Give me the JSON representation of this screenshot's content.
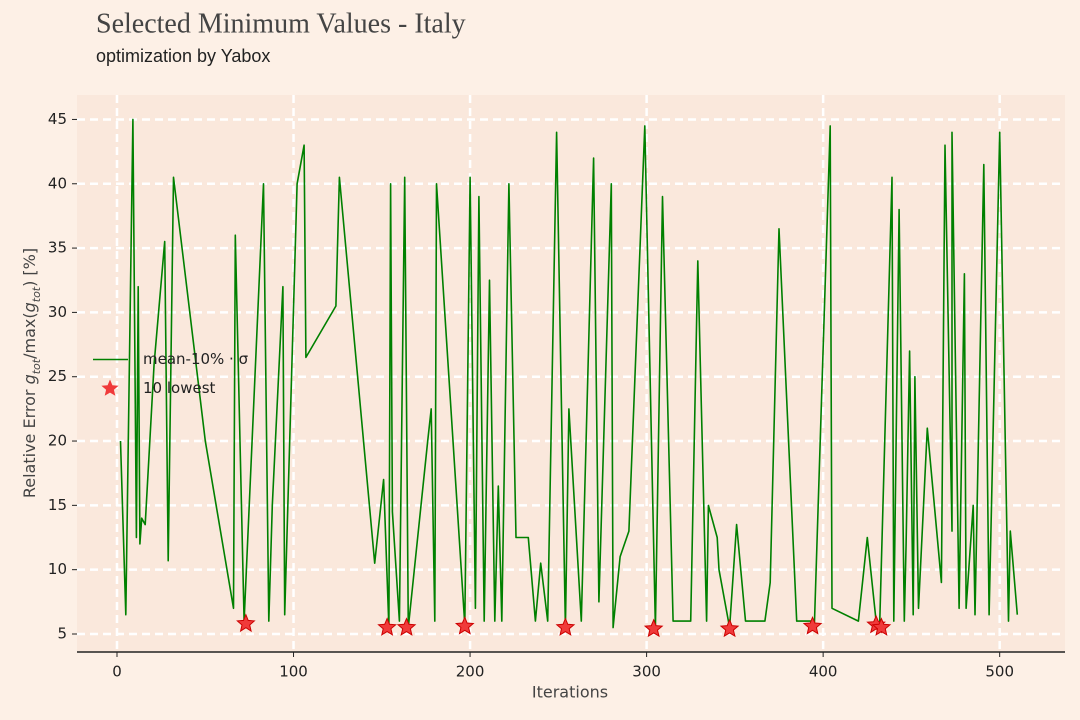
{
  "chart_data": {
    "type": "line",
    "title": "Selected Minimum Values - Italy",
    "subtitle": "optimization by Yabox",
    "xlabel": "Iterations",
    "ylabel_parts": [
      "Relative Error ",
      "g",
      "tot",
      "/max(",
      "g",
      "tot",
      ") [%]"
    ],
    "xlim": [
      -22.65,
      537
    ],
    "ylim": [
      3.6,
      46.9
    ],
    "xticks": [
      0,
      100,
      200,
      300,
      400,
      500
    ],
    "yticks": [
      5,
      10,
      15,
      20,
      25,
      30,
      35,
      40,
      45
    ],
    "grid": true,
    "legend": "center left",
    "series": [
      {
        "name": "mean-10% · σ",
        "color": "#008000",
        "type": "line",
        "x": [
          2,
          5,
          9,
          11,
          12,
          13,
          14,
          16,
          21,
          27,
          29,
          32,
          50,
          66,
          67,
          72,
          83,
          86,
          88,
          94,
          95,
          102,
          106,
          107,
          124,
          126,
          146,
          151,
          154,
          155,
          156,
          160,
          163,
          165,
          176,
          178,
          180,
          181,
          197,
          200,
          203,
          205,
          208,
          211,
          214,
          216,
          218,
          222,
          226,
          233,
          237,
          240,
          244,
          249,
          254,
          256,
          263,
          270,
          273,
          280,
          281,
          285,
          290,
          299,
          305,
          309,
          315,
          325,
          329,
          334,
          335,
          340,
          341,
          347,
          351,
          356,
          367,
          370,
          375,
          385,
          393,
          395,
          404,
          405,
          420,
          425,
          430,
          432,
          439,
          440,
          443,
          446,
          447,
          449,
          451,
          452,
          454,
          459,
          467,
          469,
          473,
          473,
          477,
          480,
          481,
          485,
          486,
          491,
          494,
          500,
          505,
          506,
          510
        ],
        "values": [
          20,
          6.5,
          45,
          12.5,
          32,
          12,
          14,
          13.5,
          26,
          35.5,
          10.7,
          40.5,
          20,
          7,
          36,
          6,
          40,
          6,
          15,
          32,
          6.5,
          40,
          43,
          26.5,
          30.5,
          40.5,
          10.5,
          17,
          5.5,
          40,
          14.5,
          6,
          40.5,
          5.5,
          20,
          22.5,
          6,
          40,
          5.7,
          40.5,
          7,
          39,
          6,
          32.5,
          6,
          16.5,
          6,
          40,
          12.5,
          12.5,
          6,
          10.5,
          6,
          44,
          5.5,
          22.5,
          6,
          42,
          7.5,
          40,
          5.5,
          11,
          13,
          44.5,
          5.5,
          39,
          6,
          6,
          34,
          6,
          15,
          12.5,
          10,
          5.5,
          13.5,
          6,
          6,
          9,
          36.5,
          6,
          6,
          5.5,
          44.5,
          7,
          6,
          12.5,
          6,
          5.5,
          40.5,
          6,
          38,
          6,
          12,
          27,
          6.5,
          25,
          7,
          21,
          9,
          43,
          13,
          44,
          7,
          33,
          7,
          15,
          6.5,
          41.5,
          6.5,
          44,
          6,
          13,
          6.5
        ]
      },
      {
        "name": "10 lowest",
        "color": "#f03a3a",
        "type": "scatter",
        "x": [
          73,
          153,
          164,
          197,
          254,
          304,
          347,
          394,
          430,
          433
        ],
        "values": [
          5.8,
          5.5,
          5.5,
          5.6,
          5.5,
          5.4,
          5.4,
          5.6,
          5.7,
          5.5
        ]
      }
    ]
  }
}
